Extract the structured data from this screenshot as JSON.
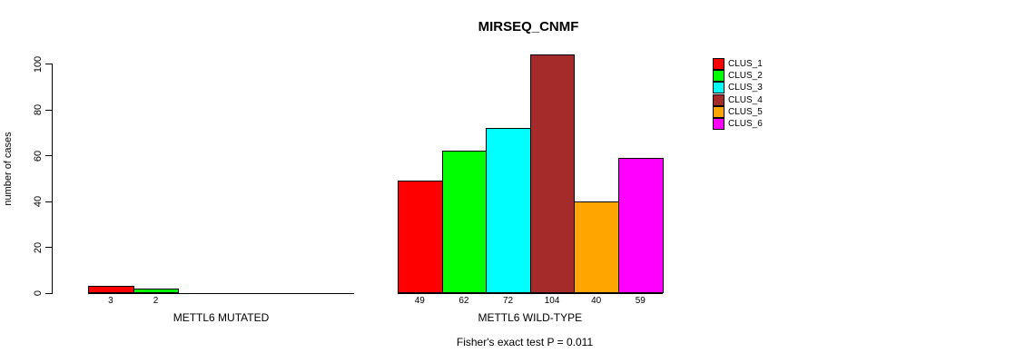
{
  "chart_data": {
    "type": "bar",
    "title": "MIRSEQ_CNMF",
    "ylabel": "number of cases",
    "xlabel": "",
    "ylim": [
      0,
      100
    ],
    "yticks": [
      0,
      20,
      40,
      60,
      80,
      100
    ],
    "grid": false,
    "legend_position": "right",
    "legend_entries": [
      "CLUS_1",
      "CLUS_2",
      "CLUS_3",
      "CLUS_4",
      "CLUS_5",
      "CLUS_6"
    ],
    "cluster_colors": [
      "#FF0000",
      "#00FF00",
      "#00FFFF",
      "#A52A2A",
      "#FFA500",
      "#FF00FF"
    ],
    "groups": [
      {
        "label": "METTL6 MUTATED",
        "categories": [
          "CLUS_1",
          "CLUS_2"
        ],
        "values": [
          3,
          2
        ],
        "colors": [
          "#FF0000",
          "#00FF00"
        ]
      },
      {
        "label": "METTL6 WILD-TYPE",
        "categories": [
          "CLUS_1",
          "CLUS_2",
          "CLUS_3",
          "CLUS_4",
          "CLUS_5",
          "CLUS_6"
        ],
        "values": [
          49,
          62,
          72,
          104,
          40,
          59
        ],
        "colors": [
          "#FF0000",
          "#00FF00",
          "#00FFFF",
          "#A52A2A",
          "#FFA500",
          "#FF00FF"
        ]
      }
    ],
    "annotation": "Fisher's exact test P = 0.011",
    "axis_color": "#000000",
    "background_color": "#FFFFFF"
  }
}
